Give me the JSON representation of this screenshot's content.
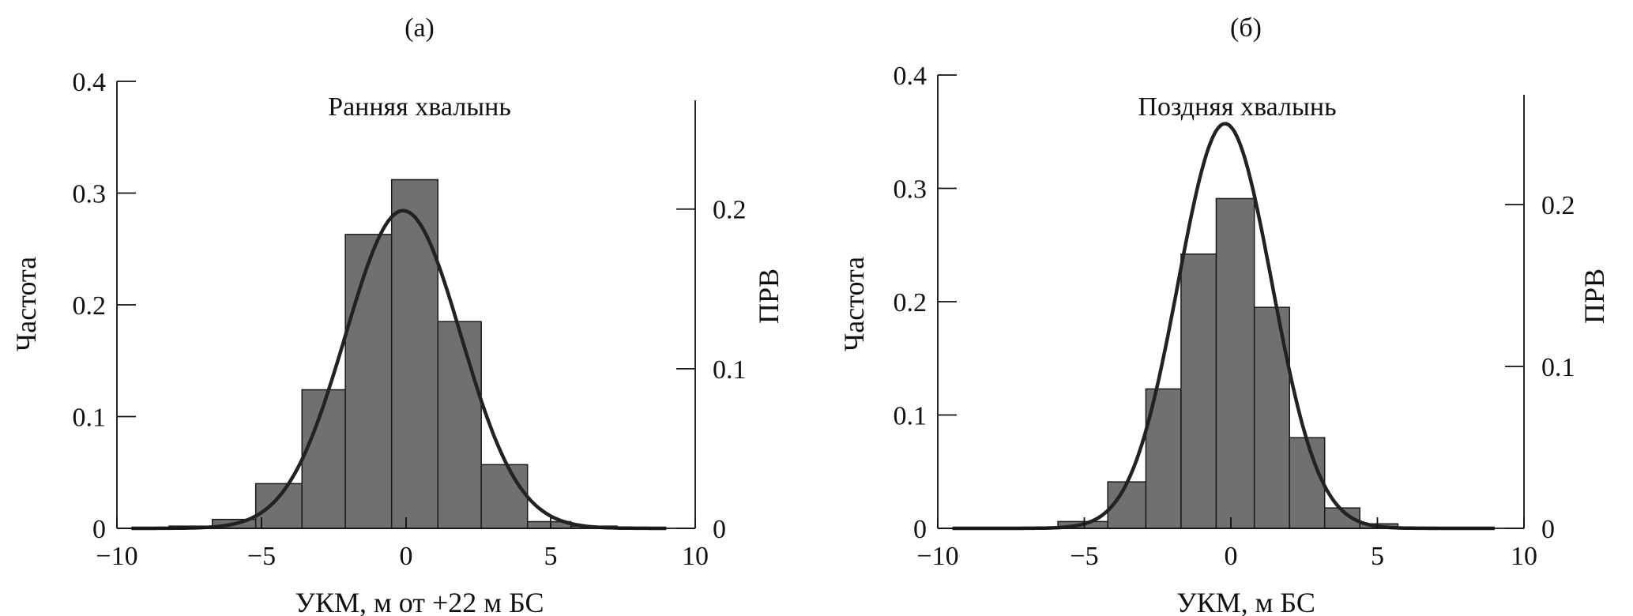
{
  "chart_data": [
    {
      "type": "bar",
      "panel_label": "(а)",
      "title": "Ранняя хвалынь",
      "xlabel": "УКМ, м от +22 м БС",
      "ylabel": "Частота",
      "ylabel_right": "ПРВ",
      "xlim": [
        -10,
        10
      ],
      "ylim": [
        0,
        0.4
      ],
      "ylim_right": [
        0,
        0.28
      ],
      "x_ticks": [
        "−10",
        "−5",
        "0",
        "5",
        "10"
      ],
      "y_ticks": [
        "0",
        "0.1",
        "0.2",
        "0.3",
        "0.4"
      ],
      "y_right_ticks": [
        "0",
        "0.1",
        "0.2"
      ],
      "bars": [
        {
          "x0": -8.2,
          "x1": -6.7,
          "value": 0.002
        },
        {
          "x0": -6.7,
          "x1": -5.2,
          "value": 0.008
        },
        {
          "x0": -5.2,
          "x1": -3.6,
          "value": 0.04
        },
        {
          "x0": -3.6,
          "x1": -2.1,
          "value": 0.124
        },
        {
          "x0": -2.1,
          "x1": -0.5,
          "value": 0.263
        },
        {
          "x0": -0.5,
          "x1": 1.1,
          "value": 0.312
        },
        {
          "x0": 1.1,
          "x1": 2.6,
          "value": 0.185
        },
        {
          "x0": 2.6,
          "x1": 4.2,
          "value": 0.057
        },
        {
          "x0": 4.2,
          "x1": 5.7,
          "value": 0.006
        },
        {
          "x0": 5.7,
          "x1": 7.3,
          "value": 0.002
        }
      ],
      "pdf_curve": {
        "mean": -0.1,
        "sd": 2.0,
        "peak": 0.199
      }
    },
    {
      "type": "bar",
      "panel_label": "(б)",
      "title": "Поздняя хвалынь",
      "xlabel": "УКМ, м  БС",
      "ylabel": "Частота",
      "ylabel_right": "ПРВ",
      "xlim": [
        -10,
        10
      ],
      "ylim": [
        0,
        0.4
      ],
      "ylim_right": [
        0,
        0.28
      ],
      "x_ticks": [
        "−10",
        "−5",
        "0",
        "5",
        "10"
      ],
      "y_ticks": [
        "0",
        "0.1",
        "0.2",
        "0.3",
        "0.4"
      ],
      "y_right_ticks": [
        "0",
        "0.1",
        "0.2"
      ],
      "bars": [
        {
          "x0": -7.2,
          "x1": -5.9,
          "value": 0.001
        },
        {
          "x0": -5.9,
          "x1": -4.2,
          "value": 0.006
        },
        {
          "x0": -4.2,
          "x1": -2.9,
          "value": 0.041
        },
        {
          "x0": -2.9,
          "x1": -1.7,
          "value": 0.123
        },
        {
          "x0": -1.7,
          "x1": -0.5,
          "value": 0.242
        },
        {
          "x0": -0.5,
          "x1": 0.8,
          "value": 0.291
        },
        {
          "x0": 0.8,
          "x1": 2.0,
          "value": 0.195
        },
        {
          "x0": 2.0,
          "x1": 3.2,
          "value": 0.08
        },
        {
          "x0": 3.2,
          "x1": 4.4,
          "value": 0.018
        },
        {
          "x0": 4.4,
          "x1": 5.7,
          "value": 0.004
        },
        {
          "x0": 5.7,
          "x1": 7.0,
          "value": 0.001
        }
      ],
      "pdf_curve": {
        "mean": -0.2,
        "sd": 1.6,
        "peak": 0.25
      }
    }
  ]
}
